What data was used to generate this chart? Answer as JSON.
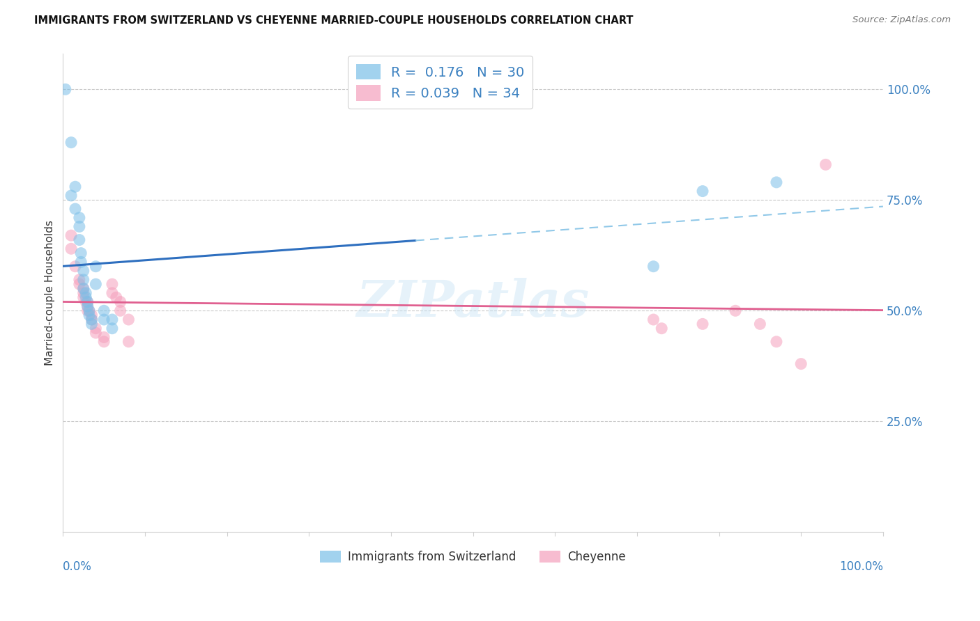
{
  "title": "IMMIGRANTS FROM SWITZERLAND VS CHEYENNE MARRIED-COUPLE HOUSEHOLDS CORRELATION CHART",
  "source": "Source: ZipAtlas.com",
  "ylabel": "Married-couple Households",
  "legend_label1": "Immigrants from Switzerland",
  "legend_label2": "Cheyenne",
  "R1": 0.176,
  "N1": 30,
  "R2": 0.039,
  "N2": 34,
  "blue_color": "#7bbfe8",
  "pink_color": "#f5a0bc",
  "blue_line_color": "#2e6fbf",
  "pink_line_color": "#e06090",
  "dashed_line_color": "#90c8e8",
  "watermark": "ZIPatlas",
  "blue_x": [
    0.003,
    0.01,
    0.01,
    0.015,
    0.015,
    0.02,
    0.02,
    0.02,
    0.022,
    0.022,
    0.025,
    0.025,
    0.025,
    0.028,
    0.028,
    0.03,
    0.03,
    0.032,
    0.032,
    0.035,
    0.035,
    0.04,
    0.04,
    0.05,
    0.05,
    0.06,
    0.06,
    0.72,
    0.78,
    0.87
  ],
  "blue_y": [
    1.0,
    0.88,
    0.76,
    0.78,
    0.73,
    0.71,
    0.69,
    0.66,
    0.63,
    0.61,
    0.59,
    0.57,
    0.55,
    0.54,
    0.53,
    0.52,
    0.51,
    0.5,
    0.49,
    0.48,
    0.47,
    0.6,
    0.56,
    0.5,
    0.48,
    0.48,
    0.46,
    0.6,
    0.77,
    0.79
  ],
  "pink_x": [
    0.01,
    0.01,
    0.015,
    0.02,
    0.02,
    0.025,
    0.025,
    0.025,
    0.028,
    0.03,
    0.03,
    0.03,
    0.032,
    0.035,
    0.035,
    0.04,
    0.04,
    0.05,
    0.05,
    0.06,
    0.06,
    0.065,
    0.07,
    0.07,
    0.08,
    0.08,
    0.72,
    0.73,
    0.78,
    0.82,
    0.85,
    0.87,
    0.9,
    0.93
  ],
  "pink_y": [
    0.67,
    0.64,
    0.6,
    0.57,
    0.56,
    0.55,
    0.54,
    0.53,
    0.52,
    0.52,
    0.51,
    0.5,
    0.5,
    0.49,
    0.48,
    0.46,
    0.45,
    0.44,
    0.43,
    0.56,
    0.54,
    0.53,
    0.52,
    0.5,
    0.48,
    0.43,
    0.48,
    0.46,
    0.47,
    0.5,
    0.47,
    0.43,
    0.38,
    0.83
  ],
  "xlim": [
    0.0,
    1.0
  ],
  "ylim": [
    0.0,
    1.08
  ],
  "grid_values": [
    0.25,
    0.5,
    0.75,
    1.0
  ],
  "grid_labels": [
    "25.0%",
    "50.0%",
    "75.0%",
    "100.0%"
  ],
  "background_color": "#ffffff",
  "grid_color": "#c8c8c8"
}
